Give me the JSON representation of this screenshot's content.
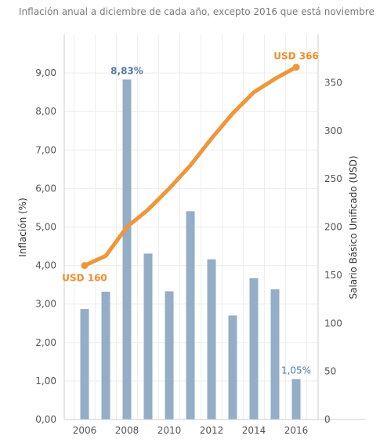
{
  "header": {
    "subtitle": "Inflación anual a diciembre de cada año, excepto 2016 que está noviembre"
  },
  "colors": {
    "bar": "#93aec6",
    "line": "#f0953a",
    "bar_label": "#4e79a7",
    "line_label": "#f28e2b",
    "grid": "#eeeeee",
    "axis": "#cccccc"
  },
  "chart_data": {
    "type": "bar",
    "title": "",
    "subtitle": "Inflación anual a diciembre de cada año, excepto 2016 que está noviembre",
    "ylabel": "Inflación (%)",
    "y2label": "Salario Básico Unificado (USD)",
    "ylim": [
      0,
      10
    ],
    "y2lim": [
      0,
      400
    ],
    "grid": true,
    "categories": [
      "2006",
      "2007",
      "2008",
      "2009",
      "2010",
      "2011",
      "2012",
      "2013",
      "2014",
      "2015",
      "2016"
    ],
    "x_tick_labels": [
      "2006",
      "2008",
      "2010",
      "2012",
      "2014",
      "2016"
    ],
    "y_tick_labels": [
      "0,00",
      "1,00",
      "2,00",
      "3,00",
      "4,00",
      "5,00",
      "6,00",
      "7,00",
      "8,00",
      "9,00"
    ],
    "y2_tick_labels": [
      "0",
      "50",
      "100",
      "150",
      "200",
      "250",
      "300",
      "350"
    ],
    "series": [
      {
        "axis": "left",
        "type": "bar",
        "values": [
          2.87,
          3.32,
          8.83,
          4.31,
          3.33,
          5.41,
          4.16,
          2.7,
          3.67,
          3.38,
          1.05
        ]
      },
      {
        "axis": "right",
        "type": "line",
        "values": [
          160,
          170,
          200,
          218,
          240,
          264,
          292,
          318,
          340,
          354,
          366
        ]
      }
    ],
    "annotations": {
      "bar_max": "8,83%",
      "bar_last": "1,05%",
      "line_first": "USD 160",
      "line_last": "USD 366"
    }
  }
}
